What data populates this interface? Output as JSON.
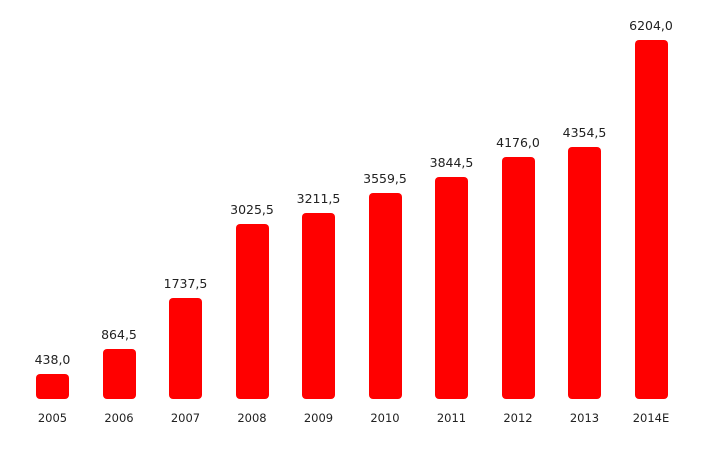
{
  "chart_data": {
    "type": "bar",
    "title": "",
    "xlabel": "",
    "ylabel": "",
    "categories": [
      "2005",
      "2006",
      "2007",
      "2008",
      "2009",
      "2010",
      "2011",
      "2012",
      "2013",
      "2014E"
    ],
    "values": [
      438.0,
      864.5,
      1737.5,
      3025.5,
      3211.5,
      3559.5,
      3844.5,
      4176.0,
      4354.5,
      6204.0
    ],
    "value_labels": [
      "438,0",
      "864,5",
      "1737,5",
      "3025,5",
      "3211,5",
      "3559,5",
      "3844,5",
      "4176,0",
      "4354,5",
      "6204,0"
    ],
    "ylim": [
      0,
      6204
    ],
    "grid": false,
    "legend": null,
    "bar_color": "#ff0000"
  }
}
